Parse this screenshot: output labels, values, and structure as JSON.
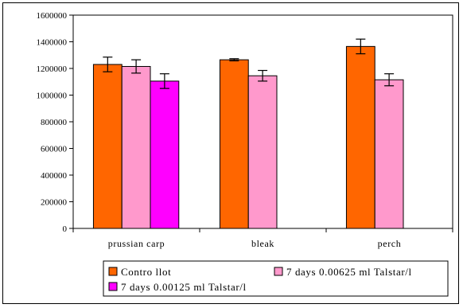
{
  "chart_data": {
    "type": "bar",
    "categories": [
      "prussian carp",
      "bleak",
      "perch"
    ],
    "series": [
      {
        "name": "Controllot",
        "legend_label": "Contro llot",
        "color": "#FF6600",
        "values": [
          1230000,
          1265000,
          1365000
        ],
        "errors": [
          55000,
          8000,
          55000
        ]
      },
      {
        "name": "7 days 0.00625 ml Talstar/l",
        "legend_label": "7 days 0.00625 ml Talstar/l",
        "color": "#FF99CC",
        "values": [
          1215000,
          1145000,
          1115000
        ],
        "errors": [
          50000,
          40000,
          45000
        ]
      },
      {
        "name": "7 days 0.00125 ml Talstar/l",
        "legend_label": "7 days 0.00125 ml Talstar/l",
        "color": "#FF00FF",
        "values": [
          1105000,
          null,
          null
        ],
        "errors": [
          55000,
          null,
          null
        ]
      }
    ],
    "ylim": [
      0,
      1600000
    ],
    "yticks": [
      0,
      200000,
      400000,
      600000,
      800000,
      1000000,
      1200000,
      1400000,
      1600000
    ],
    "ytick_labels": [
      "0",
      "200000",
      "400000",
      "600000",
      "800000",
      "1000000",
      "1200000",
      "1400000",
      "1600000"
    ],
    "grid": false,
    "legend_position": "bottom",
    "plot_area_color": "#FFFFFF"
  }
}
